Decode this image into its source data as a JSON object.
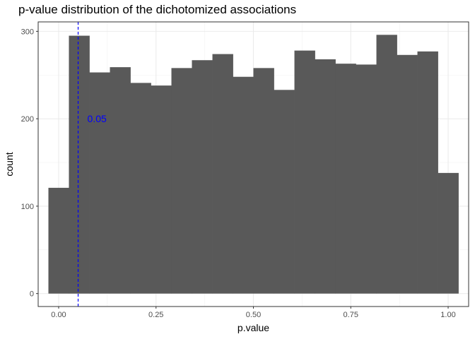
{
  "chart_data": {
    "type": "bar",
    "title": "p-value distribution of the dichotomized associations",
    "xlabel": "p.value",
    "ylabel": "count",
    "bin_width": 0.0526,
    "bin_centers": [
      0.0,
      0.0526,
      0.1053,
      0.1579,
      0.2105,
      0.2632,
      0.3158,
      0.3684,
      0.4211,
      0.4737,
      0.5263,
      0.5789,
      0.6316,
      0.6842,
      0.7368,
      0.7895,
      0.8421,
      0.8947,
      0.9474,
      1.0
    ],
    "values": [
      121,
      295,
      253,
      259,
      241,
      238,
      258,
      267,
      274,
      248,
      258,
      233,
      278,
      268,
      263,
      262,
      296,
      273,
      277,
      138
    ],
    "xlim": [
      -0.0526,
      1.0526
    ],
    "ylim": [
      -14.8,
      310.8
    ],
    "x_ticks": [
      "0.00",
      "0.25",
      "0.50",
      "0.75",
      "1.00"
    ],
    "y_ticks": [
      "0",
      "100",
      "200",
      "300"
    ],
    "bar_color": "#595959",
    "grid": true,
    "reference_line": {
      "x": 0.05,
      "label": "0.05",
      "color": "#0000ff",
      "style": "dashed",
      "label_y": 200
    }
  }
}
